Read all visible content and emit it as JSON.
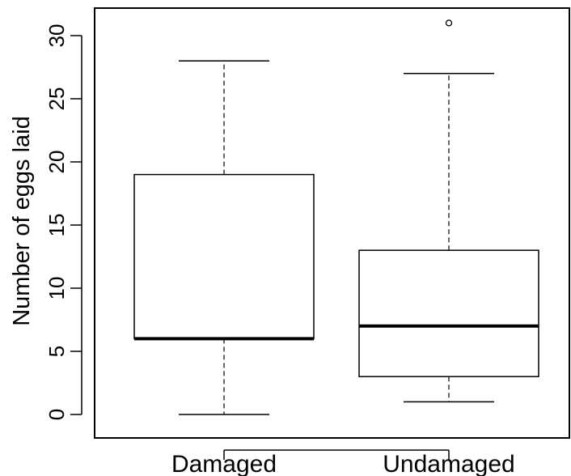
{
  "chart_data": {
    "type": "boxplot",
    "title": "",
    "xlabel": "",
    "ylabel": "Number of eggs laid",
    "ylim": [
      -2,
      32
    ],
    "yticks": [
      0,
      5,
      10,
      15,
      20,
      25,
      30
    ],
    "grid": false,
    "legend": "none",
    "categories": [
      "Damaged",
      "Undamaged"
    ],
    "boxes": [
      {
        "category": "Damaged",
        "min": 0,
        "q1": 6,
        "median": 6,
        "q3": 19,
        "max": 28,
        "outliers": []
      },
      {
        "category": "Undamaged",
        "min": 1,
        "q1": 3,
        "median": 7,
        "q3": 13,
        "max": 27,
        "outliers": [
          31
        ]
      }
    ],
    "colors": {
      "stroke": "#000000",
      "fill": "#ffffff",
      "text": "#000000"
    }
  }
}
